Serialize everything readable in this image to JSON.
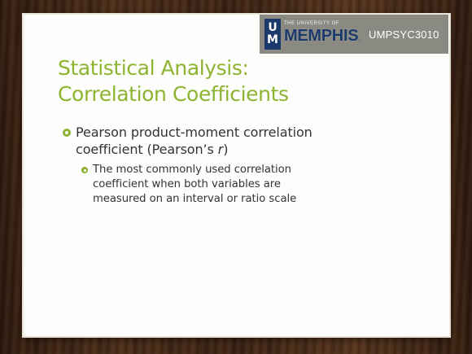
{
  "header": {
    "logo_mark_top": "U",
    "logo_mark_bottom": "M",
    "logo_small_text": "THE UNIVERSITY OF",
    "logo_big_text": "MEMPHIS",
    "logo_dot": ".",
    "course_code": "UMPSYC3010"
  },
  "slide": {
    "title_line1": "Statistical Analysis:",
    "title_line2": "Correlation Coefficients",
    "bullet1": {
      "line1": "Pearson product-moment correlation",
      "line2_prefix": "coefficient (Pearson’s ",
      "line2_italic": "r",
      "line2_suffix": ")"
    },
    "sub_bullet1": {
      "line1": "The most commonly used correlation",
      "line2": "coefficient when both variables are",
      "line3": "measured on an interval or ratio scale"
    }
  },
  "colors": {
    "accent_green": "#8db431",
    "body_text": "#333333",
    "memphis_blue": "#1b3a6b",
    "badge_gray": "#8b8a82",
    "slide_bg": "#fdfdfb"
  }
}
